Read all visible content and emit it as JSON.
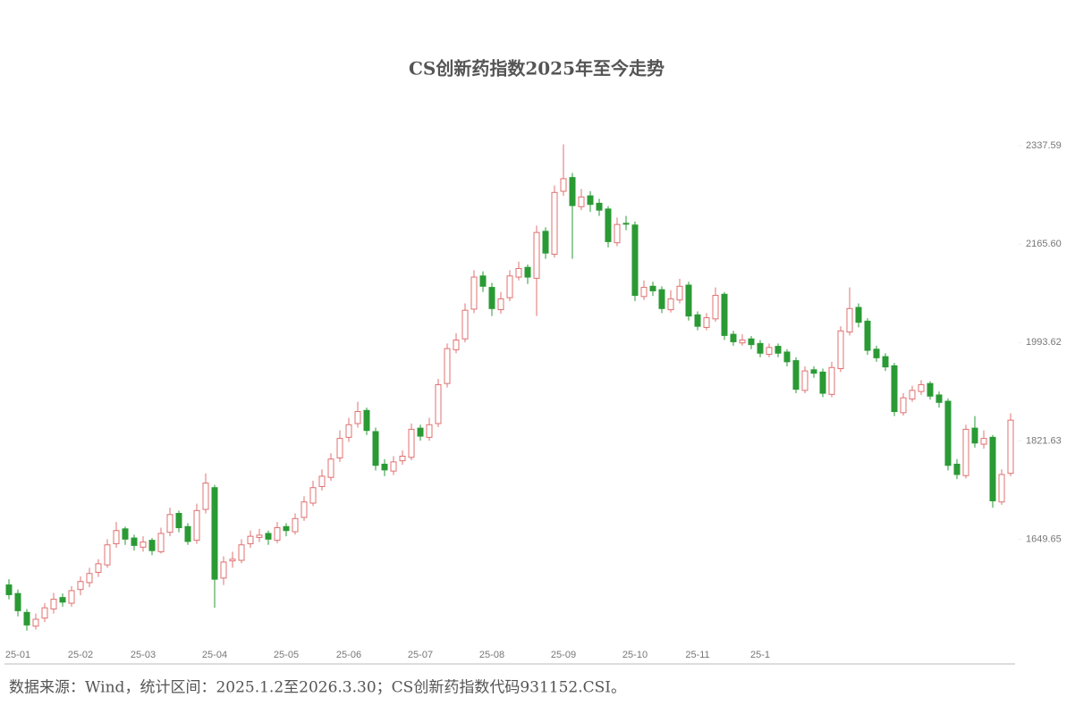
{
  "chart_data": {
    "type": "candlestick",
    "title": "CS创新药指数2025年至今走势",
    "note": "数据来源：Wind，统计区间：2025.1.2至2026.3.30；CS创新药指数代码931152.CSI。",
    "up_color": "#e07070",
    "down_color": "#2a9a34",
    "ylim": [
      1460,
      2358
    ],
    "yticks": [
      1649.65,
      1821.63,
      1993.62,
      {
        "value": 2165.6,
        "label": "2165.60"
      },
      2337.59
    ],
    "xlim": [
      -0.5,
      112.5
    ],
    "xticks": [
      {
        "value": 1,
        "label": "25-01"
      },
      {
        "value": 8,
        "label": "25-02"
      },
      {
        "value": 15,
        "label": "25-03"
      },
      {
        "value": 23,
        "label": "25-04"
      },
      {
        "value": 31,
        "label": "25-05"
      },
      {
        "value": 38,
        "label": "25-06"
      },
      {
        "value": 46,
        "label": "25-07"
      },
      {
        "value": 54,
        "label": "25-08"
      },
      {
        "value": 62,
        "label": "25-09"
      },
      {
        "value": 70,
        "label": "25-10"
      },
      {
        "value": 77,
        "label": "25-11"
      },
      {
        "value": 84,
        "label": "25-1"
      }
    ],
    "open": [
      1570,
      1555,
      1522,
      1498,
      1512,
      1528,
      1548,
      1538,
      1562,
      1574,
      1592,
      1605,
      1642,
      1668,
      1652,
      1636,
      1648,
      1628,
      1662,
      1695,
      1672,
      1648,
      1702,
      1740,
      1582,
      1612,
      1613,
      1642,
      1653,
      1660,
      1648,
      1672,
      1663,
      1688,
      1713,
      1742,
      1758,
      1792,
      1828,
      1852,
      1875,
      1838,
      1781,
      1769,
      1787,
      1793,
      1844,
      1828,
      1852,
      1922,
      1981,
      2000,
      2052,
      2110,
      2090,
      2051,
      2072,
      2108,
      2125,
      2106,
      2188,
      2148,
      2258,
      2282,
      2231,
      2250,
      2237,
      2227,
      2168,
      2202,
      2199,
      2074,
      2092,
      2086,
      2051,
      2068,
      2094,
      2042,
      2020,
      2035,
      2078,
      2008,
      1993,
      2000,
      1992,
      1973,
      1987,
      1977,
      1962,
      1910,
      1946,
      1942,
      1903,
      1948,
      2012,
      2055,
      2031,
      1982,
      1969,
      1953,
      1871,
      1895,
      1908,
      1922,
      1902,
      1891,
      1781,
      1761,
      1844,
      1816,
      1828,
      1715,
      1765
    ],
    "high": [
      1580,
      1562,
      1528,
      1520,
      1538,
      1556,
      1555,
      1568,
      1585,
      1600,
      1615,
      1650,
      1680,
      1672,
      1658,
      1655,
      1652,
      1670,
      1705,
      1700,
      1678,
      1712,
      1765,
      1745,
      1620,
      1628,
      1650,
      1665,
      1668,
      1665,
      1680,
      1678,
      1695,
      1725,
      1752,
      1772,
      1800,
      1840,
      1862,
      1890,
      1880,
      1845,
      1790,
      1795,
      1805,
      1852,
      1850,
      1862,
      1930,
      1992,
      2010,
      2062,
      2120,
      2118,
      2098,
      2082,
      2120,
      2135,
      2130,
      2198,
      2195,
      2268,
      2340,
      2290,
      2262,
      2258,
      2245,
      2232,
      2212,
      2215,
      2205,
      2102,
      2100,
      2092,
      2085,
      2105,
      2100,
      2048,
      2045,
      2090,
      2082,
      2014,
      2008,
      2005,
      1998,
      1992,
      1992,
      1982,
      1968,
      1952,
      1952,
      1948,
      1960,
      2022,
      2090,
      2062,
      2036,
      1988,
      1975,
      1958,
      1905,
      1918,
      1928,
      1926,
      1908,
      1896,
      1790,
      1850,
      1865,
      1840,
      1832,
      1772,
      1870
    ],
    "low": [
      1545,
      1515,
      1490,
      1492,
      1505,
      1520,
      1532,
      1532,
      1552,
      1566,
      1584,
      1600,
      1635,
      1640,
      1630,
      1628,
      1622,
      1625,
      1655,
      1662,
      1640,
      1642,
      1695,
      1530,
      1570,
      1600,
      1608,
      1635,
      1645,
      1640,
      1643,
      1655,
      1658,
      1682,
      1708,
      1735,
      1752,
      1785,
      1820,
      1845,
      1832,
      1770,
      1760,
      1762,
      1780,
      1788,
      1822,
      1822,
      1846,
      1915,
      1975,
      1994,
      2045,
      2082,
      2040,
      2044,
      2066,
      2102,
      2096,
      2040,
      2140,
      2142,
      2250,
      2140,
      2225,
      2222,
      2215,
      2160,
      2162,
      2190,
      2066,
      2068,
      2075,
      2045,
      2046,
      2062,
      2032,
      2015,
      2015,
      2030,
      1998,
      1988,
      1988,
      1982,
      1968,
      1968,
      1968,
      1952,
      1905,
      1905,
      1932,
      1898,
      1898,
      1942,
      2006,
      2020,
      1972,
      1960,
      1944,
      1865,
      1866,
      1890,
      1902,
      1894,
      1880,
      1770,
      1755,
      1756,
      1810,
      1808,
      1705,
      1710,
      1760
    ],
    "close": [
      1553,
      1525,
      1500,
      1510,
      1530,
      1545,
      1540,
      1560,
      1576,
      1590,
      1607,
      1640,
      1665,
      1650,
      1639,
      1645,
      1630,
      1660,
      1693,
      1670,
      1646,
      1700,
      1748,
      1580,
      1610,
      1615,
      1640,
      1655,
      1657,
      1650,
      1670,
      1665,
      1686,
      1715,
      1740,
      1760,
      1790,
      1826,
      1850,
      1873,
      1840,
      1779,
      1771,
      1785,
      1795,
      1842,
      1830,
      1850,
      1920,
      1983,
      1998,
      2050,
      2108,
      2092,
      2053,
      2070,
      2110,
      2123,
      2108,
      2186,
      2150,
      2256,
      2280,
      2233,
      2248,
      2235,
      2225,
      2170,
      2200,
      2201,
      2076,
      2090,
      2084,
      2053,
      2070,
      2092,
      2040,
      2022,
      2037,
      2076,
      2006,
      1995,
      1998,
      1990,
      1975,
      1985,
      1975,
      1960,
      1912,
      1944,
      1940,
      1905,
      1950,
      2014,
      2053,
      2029,
      1980,
      1967,
      1951,
      1873,
      1897,
      1910,
      1920,
      1900,
      1889,
      1779,
      1763,
      1842,
      1818,
      1826,
      1717,
      1763,
      1858
    ]
  }
}
